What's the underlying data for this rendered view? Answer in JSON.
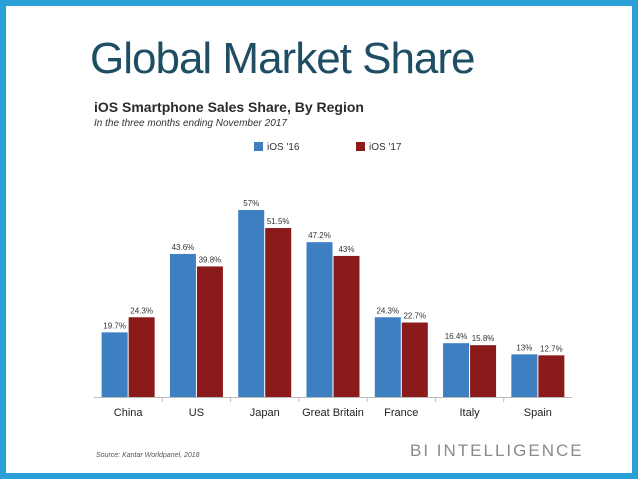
{
  "slide": {
    "title": "Global Market Share",
    "source": "Source: Kantar Worldpanel, 2018",
    "brand": "BI INTELLIGENCE"
  },
  "colors": {
    "border": "#2a9fd8",
    "title": "#1f4e64",
    "series_2016": "#3d7fc0",
    "series_2017": "#8b1a1a"
  },
  "chart_data": {
    "type": "bar",
    "title": "iOS Smartphone Sales Share, By Region",
    "subtitle": "In the three months ending November 2017",
    "categories": [
      "China",
      "US",
      "Japan",
      "Great Britain",
      "France",
      "Italy",
      "Spain"
    ],
    "series": [
      {
        "name": "iOS '16",
        "values": [
          19.7,
          43.6,
          57,
          47.2,
          24.3,
          16.4,
          13
        ],
        "labels": [
          "19.7%",
          "43.6%",
          "57%",
          "47.2%",
          "24.3%",
          "16.4%",
          "13%"
        ],
        "color": "#3d7fc0"
      },
      {
        "name": "iOS '17",
        "values": [
          24.3,
          39.8,
          51.5,
          43,
          22.7,
          15.8,
          12.7
        ],
        "labels": [
          "24.3%",
          "39.8%",
          "51.5%",
          "43%",
          "22.7%",
          "15.8%",
          "12.7%"
        ],
        "color": "#8b1a1a"
      }
    ],
    "ylim": [
      0,
      60
    ],
    "grid": false,
    "legend": "top-center",
    "xlabel": "",
    "ylabel": ""
  }
}
